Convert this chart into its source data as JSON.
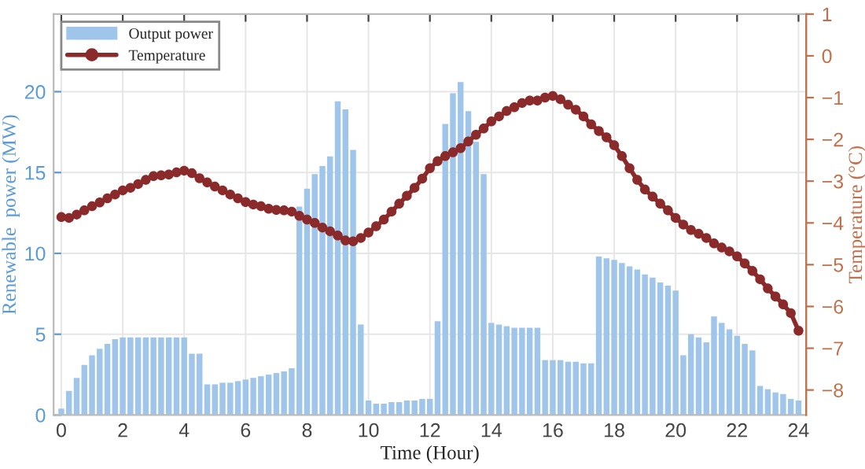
{
  "chart_data": {
    "type": "bar",
    "xlabel": "Time (Hour)",
    "ylabel": "Renewable  power (MW)",
    "y2label": "Temperature (°C)",
    "x": [
      0,
      0.25,
      0.5,
      0.75,
      1,
      1.25,
      1.5,
      1.75,
      2,
      2.25,
      2.5,
      2.75,
      3,
      3.25,
      3.5,
      3.75,
      4,
      4.25,
      4.5,
      4.75,
      5,
      5.25,
      5.5,
      5.75,
      6,
      6.25,
      6.5,
      6.75,
      7,
      7.25,
      7.5,
      7.75,
      8,
      8.25,
      8.5,
      8.75,
      9,
      9.25,
      9.5,
      9.75,
      10,
      10.25,
      10.5,
      10.75,
      11,
      11.25,
      11.5,
      11.75,
      12,
      12.25,
      12.5,
      12.75,
      13,
      13.25,
      13.5,
      13.75,
      14,
      14.25,
      14.5,
      14.75,
      15,
      15.25,
      15.5,
      15.75,
      16,
      16.25,
      16.5,
      16.75,
      17,
      17.25,
      17.5,
      17.75,
      18,
      18.25,
      18.5,
      18.75,
      19,
      19.25,
      19.5,
      19.75,
      20,
      20.25,
      20.5,
      20.75,
      21,
      21.25,
      21.5,
      21.75,
      22,
      22.25,
      22.5,
      22.75,
      23,
      23.25,
      23.5,
      23.75,
      24
    ],
    "series": [
      {
        "name": "Output power",
        "color": "#9fc5ea",
        "values": [
          0.4,
          1.5,
          2.3,
          3.1,
          3.7,
          4.1,
          4.4,
          4.7,
          4.8,
          4.8,
          4.8,
          4.8,
          4.8,
          4.8,
          4.8,
          4.8,
          4.8,
          3.8,
          3.8,
          1.9,
          1.9,
          2.0,
          2.0,
          2.1,
          2.2,
          2.3,
          2.4,
          2.5,
          2.6,
          2.7,
          2.9,
          12.9,
          14.0,
          14.9,
          15.4,
          16.0,
          19.4,
          18.9,
          16.4,
          5.6,
          0.9,
          0.7,
          0.7,
          0.8,
          0.8,
          0.9,
          0.9,
          1.0,
          1.0,
          5.8,
          18.0,
          19.9,
          20.6,
          18.8,
          16.9,
          14.9,
          5.7,
          5.6,
          5.5,
          5.4,
          5.4,
          5.4,
          5.4,
          3.4,
          3.4,
          3.4,
          3.3,
          3.3,
          3.2,
          3.2,
          9.8,
          9.7,
          9.6,
          9.4,
          9.2,
          9.0,
          8.7,
          8.5,
          8.2,
          8.0,
          7.7,
          3.7,
          5.0,
          4.8,
          4.5,
          6.1,
          5.7,
          5.3,
          4.9,
          4.4,
          4.0,
          1.8,
          1.6,
          1.4,
          1.3,
          1.0,
          0.9
        ]
      },
      {
        "name": "Temperature",
        "type": "line",
        "axis": "y2",
        "color": "#8b2a2a",
        "values": [
          -3.86,
          -3.88,
          -3.8,
          -3.7,
          -3.6,
          -3.51,
          -3.41,
          -3.32,
          -3.22,
          -3.16,
          -3.07,
          -2.97,
          -2.88,
          -2.86,
          -2.84,
          -2.79,
          -2.75,
          -2.81,
          -2.93,
          -3.03,
          -3.13,
          -3.22,
          -3.32,
          -3.41,
          -3.5,
          -3.56,
          -3.6,
          -3.66,
          -3.69,
          -3.7,
          -3.73,
          -3.83,
          -3.92,
          -4.0,
          -4.11,
          -4.2,
          -4.3,
          -4.42,
          -4.44,
          -4.36,
          -4.23,
          -4.08,
          -3.92,
          -3.73,
          -3.54,
          -3.35,
          -3.16,
          -2.94,
          -2.69,
          -2.52,
          -2.4,
          -2.31,
          -2.21,
          -2.05,
          -1.89,
          -1.74,
          -1.57,
          -1.45,
          -1.32,
          -1.23,
          -1.13,
          -1.07,
          -1.07,
          -1.0,
          -0.96,
          -1.04,
          -1.17,
          -1.29,
          -1.45,
          -1.64,
          -1.8,
          -1.95,
          -2.14,
          -2.4,
          -2.69,
          -2.97,
          -3.2,
          -3.37,
          -3.54,
          -3.7,
          -3.88,
          -4.04,
          -4.17,
          -4.26,
          -4.36,
          -4.49,
          -4.59,
          -4.68,
          -4.8,
          -4.97,
          -5.15,
          -5.35,
          -5.57,
          -5.76,
          -5.95,
          -6.16,
          -6.58
        ]
      }
    ],
    "xlim": [
      -0.25,
      24.25
    ],
    "xticks": [
      0,
      2,
      4,
      6,
      8,
      10,
      12,
      14,
      16,
      18,
      20,
      22,
      24
    ],
    "ylim": [
      0,
      24.8
    ],
    "yticks": [
      0,
      5,
      10,
      15,
      20
    ],
    "y2lim": [
      -8.6,
      1
    ],
    "y2ticks": [
      -8,
      -7,
      -6,
      -5,
      -4,
      -3,
      -2,
      -1,
      0,
      1
    ],
    "grid": true,
    "legend": "top left",
    "marker": "circle"
  }
}
